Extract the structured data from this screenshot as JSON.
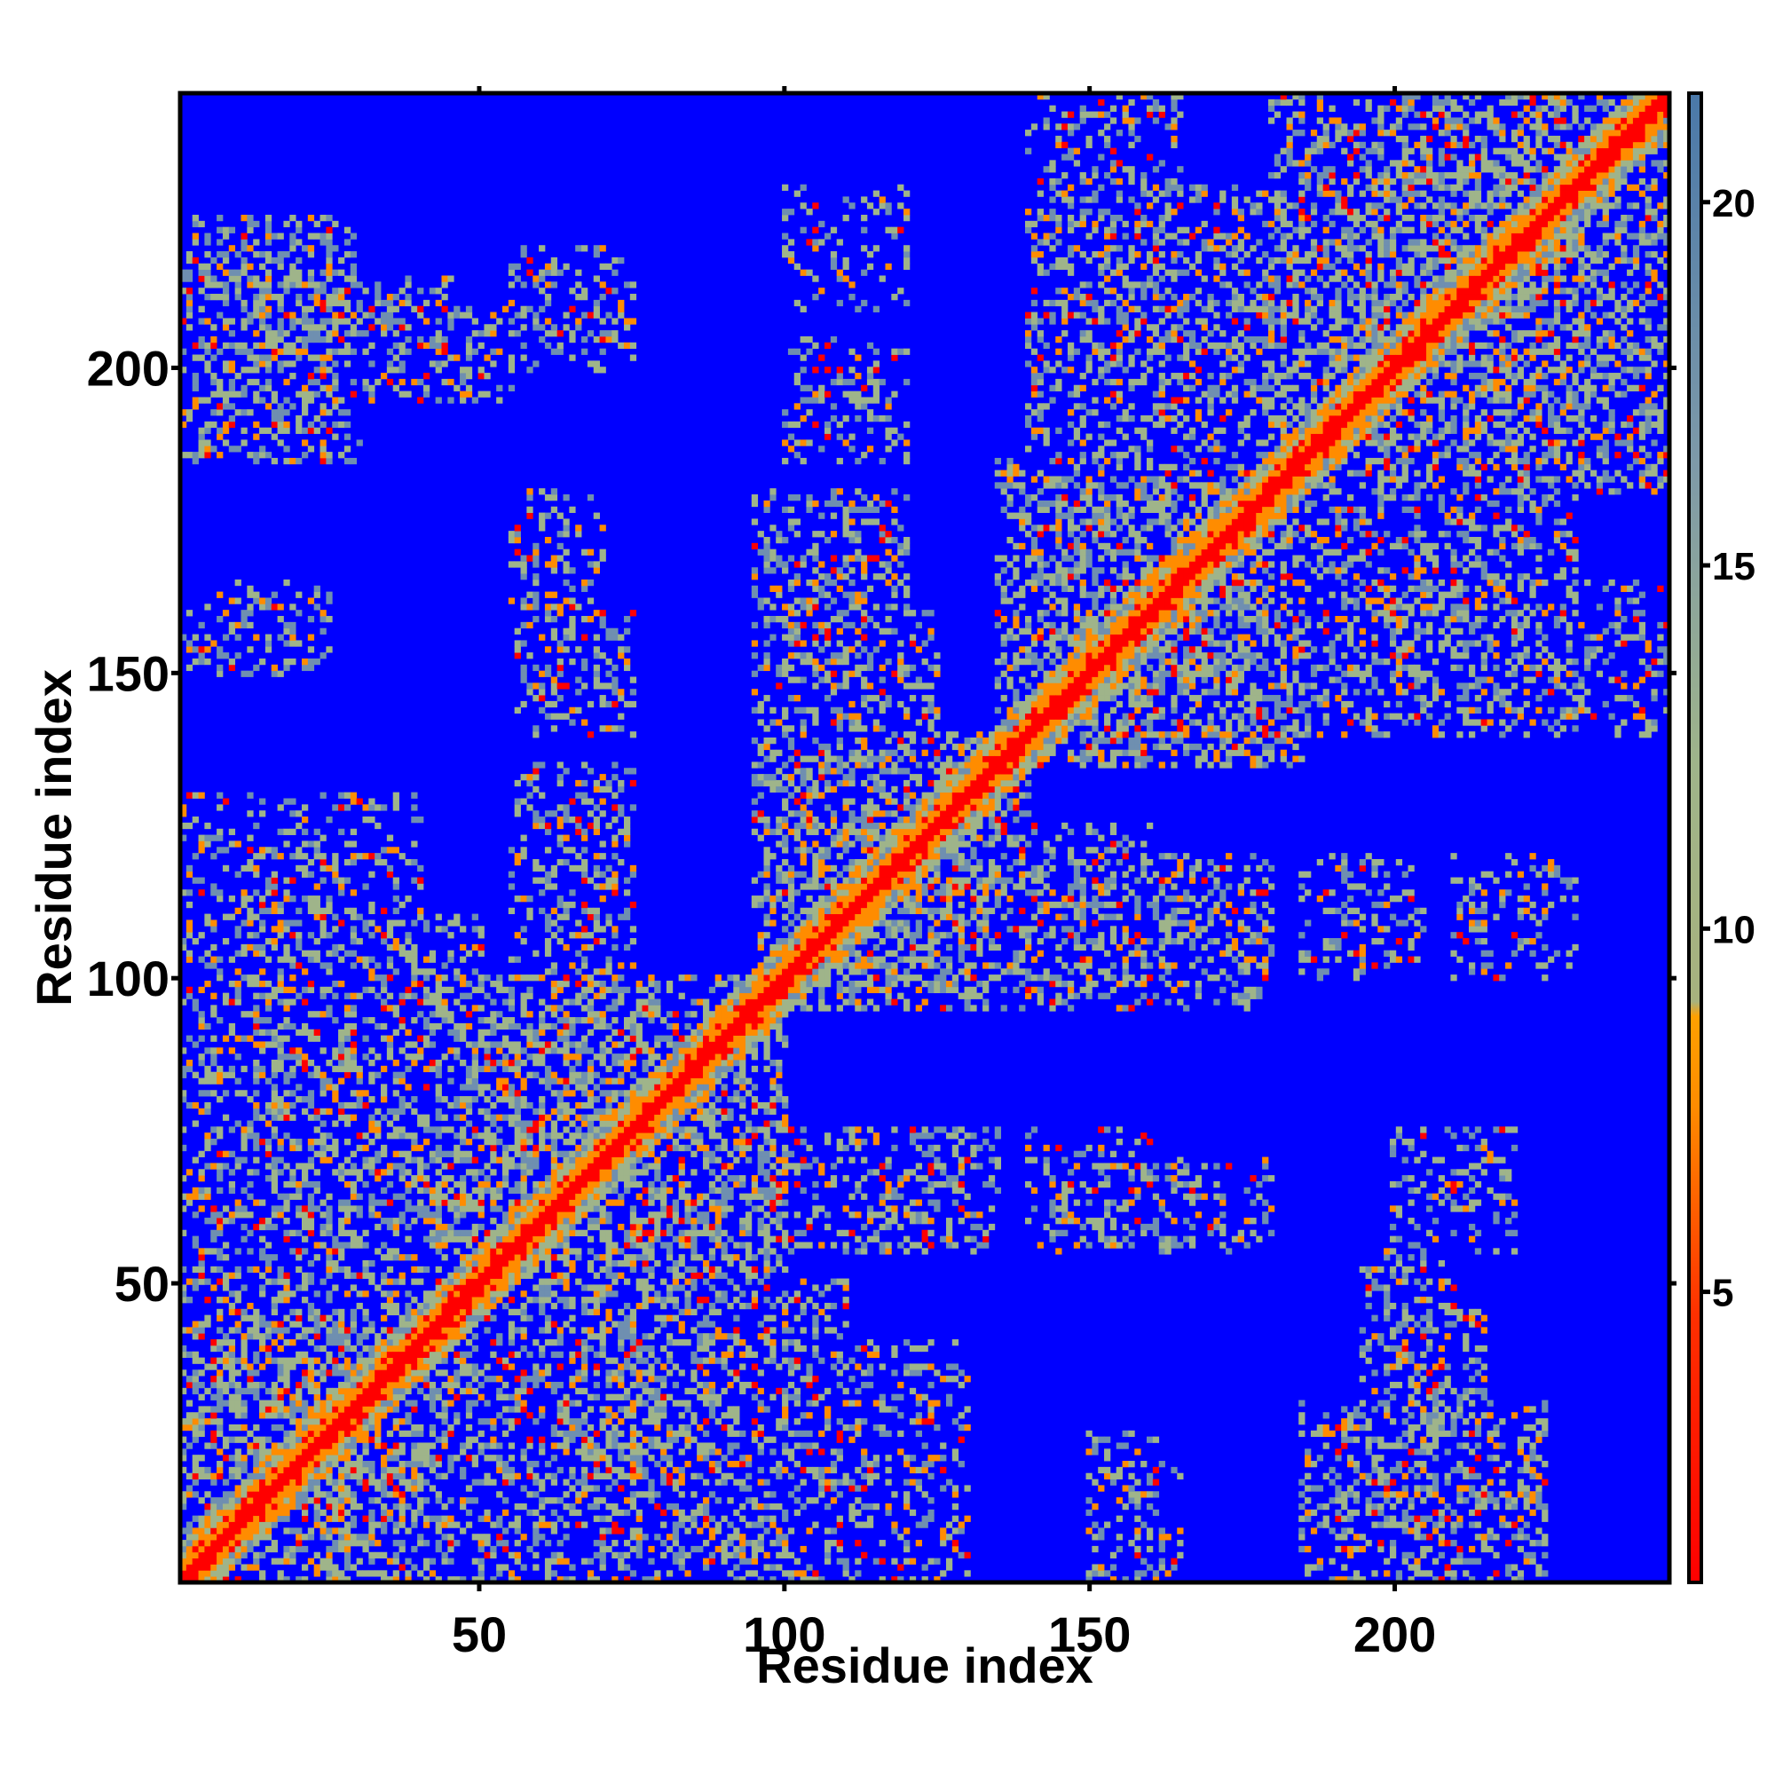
{
  "chart_data": {
    "type": "heatmap",
    "title": "",
    "xlabel": "Residue index",
    "ylabel": "Residue index",
    "n_residues": 245,
    "xlim": [
      1,
      245
    ],
    "ylim": [
      1,
      245
    ],
    "x_ticks": [
      50,
      100,
      150,
      200
    ],
    "y_ticks": [
      50,
      100,
      150,
      200
    ],
    "x_tick_labels": [
      "50",
      "100",
      "150",
      "200"
    ],
    "y_tick_labels": [
      "50",
      "100",
      "150",
      "200"
    ],
    "value_cutoff": 21,
    "colorbar": {
      "range": [
        1,
        21.5
      ],
      "ticks": [
        5,
        10,
        15,
        20
      ],
      "tick_labels": [
        "5",
        "10",
        "15",
        "20"
      ],
      "placement": "right"
    },
    "colors": {
      "background": "#0000ff",
      "close": "#ff0000",
      "near": "#ff8c00",
      "mid": "#9fb48a",
      "far": "#6f8fb0",
      "colorbar_top": "#4a78a8"
    },
    "contact_blocks": [
      {
        "i": [
          1,
          45
        ],
        "j": [
          1,
          45
        ],
        "strength": 0.85
      },
      {
        "i": [
          40,
          100
        ],
        "j": [
          40,
          100
        ],
        "strength": 0.8
      },
      {
        "i": [
          95,
          140
        ],
        "j": [
          95,
          140
        ],
        "strength": 0.8
      },
      {
        "i": [
          135,
          185
        ],
        "j": [
          135,
          185
        ],
        "strength": 0.8
      },
      {
        "i": [
          180,
          245
        ],
        "j": [
          180,
          245
        ],
        "strength": 0.8
      },
      {
        "i": [
          1,
          50
        ],
        "j": [
          40,
          110
        ],
        "strength": 0.6
      },
      {
        "i": [
          1,
          30
        ],
        "j": [
          185,
          225
        ],
        "strength": 0.65
      },
      {
        "i": [
          1,
          20
        ],
        "j": [
          150,
          165
        ],
        "strength": 0.4
      },
      {
        "i": [
          30,
          55
        ],
        "j": [
          195,
          210
        ],
        "strength": 0.45
      },
      {
        "i": [
          55,
          75
        ],
        "j": [
          140,
          160
        ],
        "strength": 0.45
      },
      {
        "i": [
          55,
          75
        ],
        "j": [
          100,
          135
        ],
        "strength": 0.5
      },
      {
        "i": [
          95,
          120
        ],
        "j": [
          130,
          180
        ],
        "strength": 0.55
      },
      {
        "i": [
          100,
          120
        ],
        "j": [
          185,
          205
        ],
        "strength": 0.4
      },
      {
        "i": [
          140,
          180
        ],
        "j": [
          185,
          230
        ],
        "strength": 0.6
      },
      {
        "i": [
          120,
          160
        ],
        "j": [
          100,
          125
        ],
        "strength": 0.5
      },
      {
        "i": [
          150,
          180
        ],
        "j": [
          55,
          70
        ],
        "strength": 0.4
      },
      {
        "i": [
          195,
          215
        ],
        "j": [
          1,
          45
        ],
        "strength": 0.55
      },
      {
        "i": [
          150,
          165
        ],
        "j": [
          1,
          25
        ],
        "strength": 0.4
      },
      {
        "i": [
          100,
          130
        ],
        "j": [
          1,
          40
        ],
        "strength": 0.4
      },
      {
        "i": [
          200,
          220
        ],
        "j": [
          55,
          75
        ],
        "strength": 0.4
      },
      {
        "i": [
          210,
          230
        ],
        "j": [
          100,
          120
        ],
        "strength": 0.35
      },
      {
        "i": [
          140,
          165
        ],
        "j": [
          185,
          245
        ],
        "strength": 0.45
      }
    ]
  }
}
